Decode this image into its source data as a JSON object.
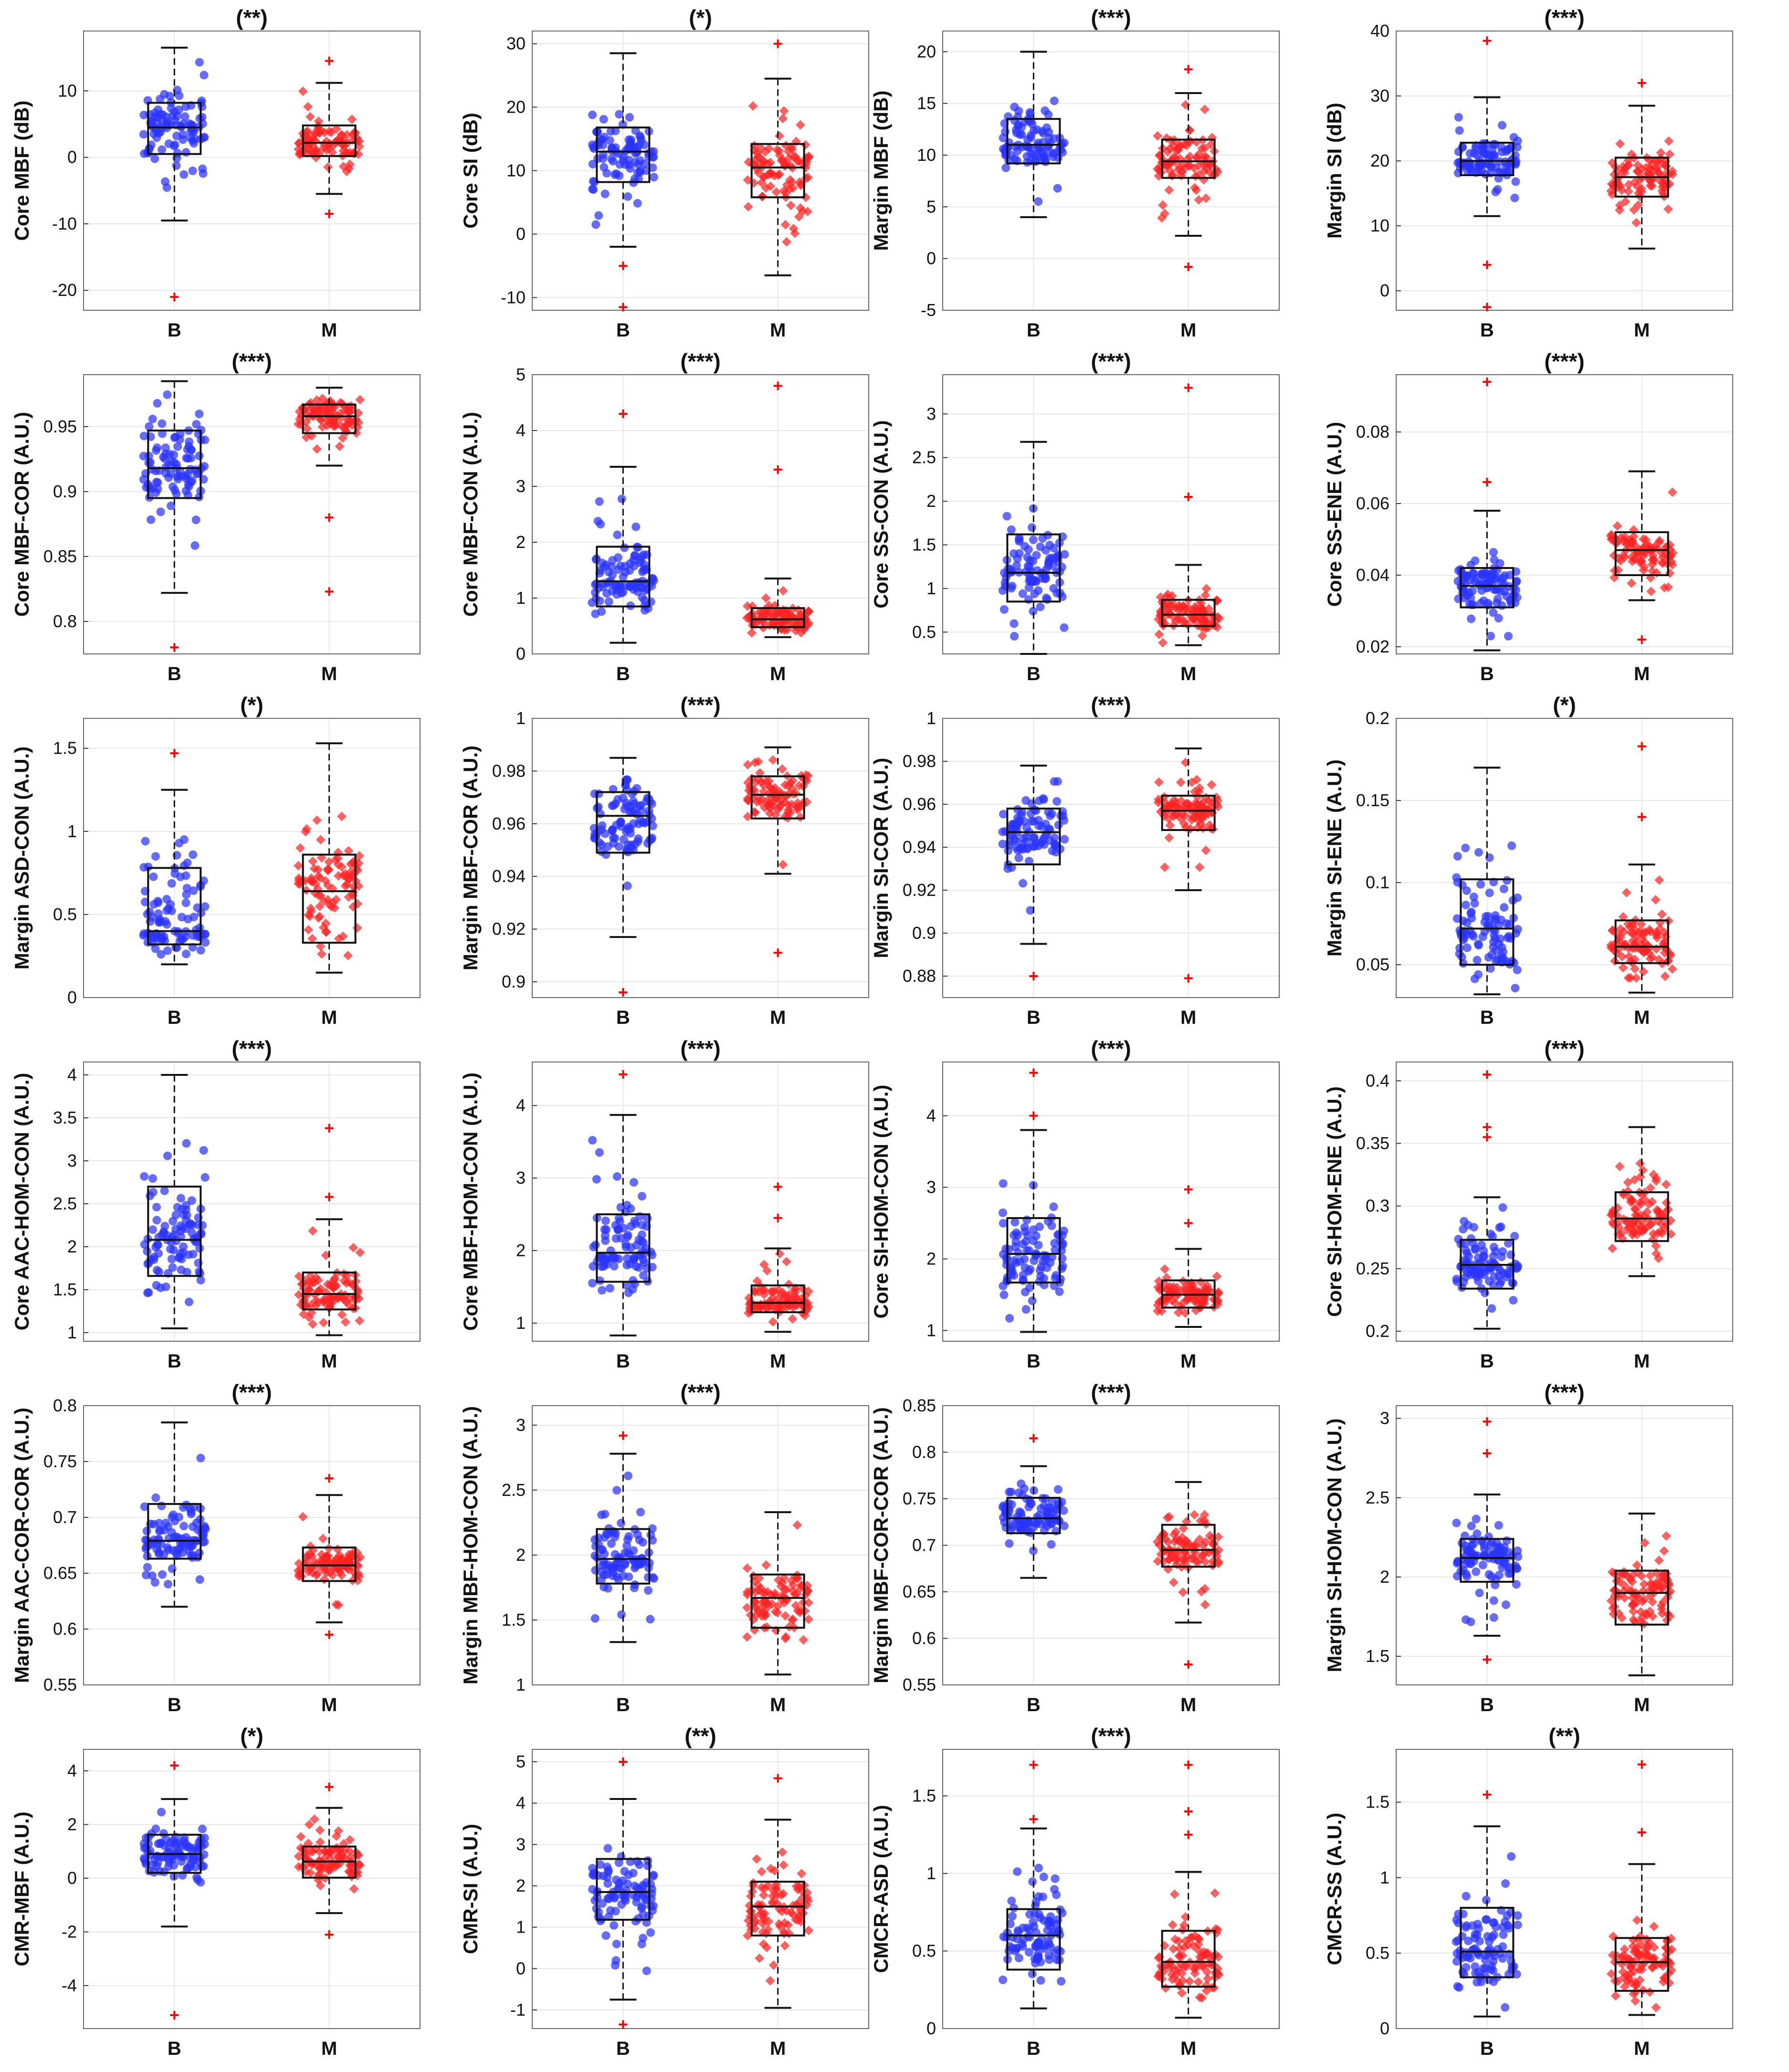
{
  "figure": {
    "rows": 6,
    "cols": 4,
    "group_colors": {
      "B": "#2a33ff",
      "M": "#ff2222"
    },
    "box_color": "#111111",
    "grid_color": "#e6e6e6"
  },
  "chart_data": [
    {
      "type": "box",
      "title": "(**)",
      "ylabel": "Core MBF (dB)",
      "categories": [
        "B",
        "M"
      ],
      "ylim": [
        -23,
        19
      ],
      "yticks": [
        -20,
        -10,
        0,
        10
      ],
      "series": [
        {
          "name": "B",
          "min": -9.5,
          "q1": 0.5,
          "median": 4.5,
          "q3": 8.2,
          "max": 16.5,
          "outliers": [
            -21
          ]
        },
        {
          "name": "M",
          "min": -5.5,
          "q1": 0.2,
          "median": 2.2,
          "q3": 4.8,
          "max": 11.2,
          "outliers": [
            14.5,
            -8.5
          ]
        }
      ]
    },
    {
      "type": "box",
      "title": "(*)",
      "ylabel": "Core SI (dB)",
      "categories": [
        "B",
        "M"
      ],
      "ylim": [
        -12,
        32
      ],
      "yticks": [
        -10,
        0,
        10,
        20,
        30
      ],
      "series": [
        {
          "name": "B",
          "min": -2,
          "q1": 8.2,
          "median": 13,
          "q3": 16.8,
          "max": 28.5,
          "outliers": [
            -11.5,
            -5
          ]
        },
        {
          "name": "M",
          "min": -6.5,
          "q1": 5.8,
          "median": 10.5,
          "q3": 14.2,
          "max": 24.5,
          "outliers": [
            30
          ]
        }
      ]
    },
    {
      "type": "box",
      "title": "(***)",
      "ylabel": "Margin MBF (dB)",
      "categories": [
        "B",
        "M"
      ],
      "ylim": [
        -5,
        22
      ],
      "yticks": [
        -5,
        0,
        5,
        10,
        15,
        20
      ],
      "series": [
        {
          "name": "B",
          "min": 4,
          "q1": 9.2,
          "median": 11,
          "q3": 13.5,
          "max": 20,
          "outliers": []
        },
        {
          "name": "M",
          "min": 2.2,
          "q1": 7.8,
          "median": 9.4,
          "q3": 11.5,
          "max": 16,
          "outliers": [
            18.3,
            -0.8
          ]
        }
      ]
    },
    {
      "type": "box",
      "title": "(***)",
      "ylabel": "Margin SI (dB)",
      "categories": [
        "B",
        "M"
      ],
      "ylim": [
        -3,
        40
      ],
      "yticks": [
        0,
        10,
        20,
        30,
        40
      ],
      "series": [
        {
          "name": "B",
          "min": 11.5,
          "q1": 17.8,
          "median": 20,
          "q3": 22.8,
          "max": 29.8,
          "outliers": [
            38.5,
            -2.5,
            4
          ]
        },
        {
          "name": "M",
          "min": 6.5,
          "q1": 14.5,
          "median": 17.5,
          "q3": 20.5,
          "max": 28.5,
          "outliers": [
            32
          ]
        }
      ]
    },
    {
      "type": "box",
      "title": "(***)",
      "ylabel": "Core MBF-COR (A.U.)",
      "categories": [
        "B",
        "M"
      ],
      "ylim": [
        0.775,
        0.99
      ],
      "yticks": [
        0.8,
        0.85,
        0.9,
        0.95
      ],
      "series": [
        {
          "name": "B",
          "min": 0.822,
          "q1": 0.895,
          "median": 0.918,
          "q3": 0.947,
          "max": 0.985,
          "outliers": [
            0.78
          ]
        },
        {
          "name": "M",
          "min": 0.92,
          "q1": 0.945,
          "median": 0.958,
          "q3": 0.967,
          "max": 0.98,
          "outliers": [
            0.88,
            0.823
          ]
        }
      ]
    },
    {
      "type": "box",
      "title": "(***)",
      "ylabel": "Core MBF-CON (A.U.)",
      "categories": [
        "B",
        "M"
      ],
      "ylim": [
        0,
        5
      ],
      "yticks": [
        0,
        1,
        2,
        3,
        4,
        5
      ],
      "series": [
        {
          "name": "B",
          "min": 0.2,
          "q1": 0.85,
          "median": 1.3,
          "q3": 1.92,
          "max": 3.35,
          "outliers": [
            4.3
          ]
        },
        {
          "name": "M",
          "min": 0.3,
          "q1": 0.48,
          "median": 0.62,
          "q3": 0.82,
          "max": 1.35,
          "outliers": [
            4.8,
            3.3
          ]
        }
      ]
    },
    {
      "type": "box",
      "title": "(***)",
      "ylabel": "Core SS-CON (A.U.)",
      "categories": [
        "B",
        "M"
      ],
      "ylim": [
        0.25,
        3.45
      ],
      "yticks": [
        0.5,
        1,
        1.5,
        2,
        2.5,
        3
      ],
      "series": [
        {
          "name": "B",
          "min": 0.25,
          "q1": 0.85,
          "median": 1.18,
          "q3": 1.62,
          "max": 2.68,
          "outliers": []
        },
        {
          "name": "M",
          "min": 0.35,
          "q1": 0.57,
          "median": 0.7,
          "q3": 0.87,
          "max": 1.27,
          "outliers": [
            3.3,
            2.05
          ]
        }
      ]
    },
    {
      "type": "box",
      "title": "(***)",
      "ylabel": "Core SS-ENE (A.U.)",
      "categories": [
        "B",
        "M"
      ],
      "ylim": [
        0.018,
        0.096
      ],
      "yticks": [
        0.02,
        0.04,
        0.06,
        0.08
      ],
      "series": [
        {
          "name": "B",
          "min": 0.019,
          "q1": 0.031,
          "median": 0.037,
          "q3": 0.042,
          "max": 0.058,
          "outliers": [
            0.094,
            0.066
          ]
        },
        {
          "name": "M",
          "min": 0.033,
          "q1": 0.04,
          "median": 0.047,
          "q3": 0.052,
          "max": 0.069,
          "outliers": [
            0.022
          ]
        }
      ]
    },
    {
      "type": "box",
      "title": "(*)",
      "ylabel": "Margin ASD-CON (A.U.)",
      "categories": [
        "B",
        "M"
      ],
      "ylim": [
        0,
        1.68
      ],
      "yticks": [
        0,
        0.5,
        1,
        1.5
      ],
      "series": [
        {
          "name": "B",
          "min": 0.2,
          "q1": 0.32,
          "median": 0.4,
          "q3": 0.78,
          "max": 1.25,
          "outliers": [
            1.47
          ]
        },
        {
          "name": "M",
          "min": 0.15,
          "q1": 0.33,
          "median": 0.64,
          "q3": 0.86,
          "max": 1.53,
          "outliers": []
        }
      ]
    },
    {
      "type": "box",
      "title": "(***)",
      "ylabel": "Margin MBF-COR (A.U.)",
      "categories": [
        "B",
        "M"
      ],
      "ylim": [
        0.894,
        1.0
      ],
      "yticks": [
        0.9,
        0.92,
        0.94,
        0.96,
        0.98,
        1
      ],
      "series": [
        {
          "name": "B",
          "min": 0.917,
          "q1": 0.949,
          "median": 0.963,
          "q3": 0.972,
          "max": 0.985,
          "outliers": [
            0.896
          ]
        },
        {
          "name": "M",
          "min": 0.941,
          "q1": 0.962,
          "median": 0.971,
          "q3": 0.978,
          "max": 0.989,
          "outliers": [
            0.911
          ]
        }
      ]
    },
    {
      "type": "box",
      "title": "(***)",
      "ylabel": "Margin SI-COR (A.U.)",
      "categories": [
        "B",
        "M"
      ],
      "ylim": [
        0.87,
        1.0
      ],
      "yticks": [
        0.88,
        0.9,
        0.92,
        0.94,
        0.96,
        0.98,
        1
      ],
      "series": [
        {
          "name": "B",
          "min": 0.895,
          "q1": 0.932,
          "median": 0.947,
          "q3": 0.958,
          "max": 0.978,
          "outliers": [
            0.88
          ]
        },
        {
          "name": "M",
          "min": 0.92,
          "q1": 0.948,
          "median": 0.957,
          "q3": 0.964,
          "max": 0.986,
          "outliers": [
            0.879
          ]
        }
      ]
    },
    {
      "type": "box",
      "title": "(*)",
      "ylabel": "Margin SI-ENE (A.U.)",
      "categories": [
        "B",
        "M"
      ],
      "ylim": [
        0.03,
        0.2
      ],
      "yticks": [
        0.05,
        0.1,
        0.15,
        0.2
      ],
      "series": [
        {
          "name": "B",
          "min": 0.032,
          "q1": 0.05,
          "median": 0.072,
          "q3": 0.102,
          "max": 0.17,
          "outliers": []
        },
        {
          "name": "M",
          "min": 0.033,
          "q1": 0.051,
          "median": 0.061,
          "q3": 0.077,
          "max": 0.111,
          "outliers": [
            0.183,
            0.14
          ]
        }
      ]
    },
    {
      "type": "box",
      "title": "(***)",
      "ylabel": "Core AAC-HOM-CON (A.U.)",
      "categories": [
        "B",
        "M"
      ],
      "ylim": [
        0.9,
        4.15
      ],
      "yticks": [
        1,
        1.5,
        2,
        2.5,
        3,
        3.5,
        4
      ],
      "series": [
        {
          "name": "B",
          "min": 1.05,
          "q1": 1.66,
          "median": 2.08,
          "q3": 2.7,
          "max": 4.0,
          "outliers": []
        },
        {
          "name": "M",
          "min": 0.97,
          "q1": 1.27,
          "median": 1.45,
          "q3": 1.7,
          "max": 2.32,
          "outliers": [
            3.38,
            2.58
          ]
        }
      ]
    },
    {
      "type": "box",
      "title": "(***)",
      "ylabel": "Core MBF-HOM-CON (A.U.)",
      "categories": [
        "B",
        "M"
      ],
      "ylim": [
        0.75,
        4.6
      ],
      "yticks": [
        1,
        2,
        3,
        4
      ],
      "series": [
        {
          "name": "B",
          "min": 0.83,
          "q1": 1.57,
          "median": 1.97,
          "q3": 2.5,
          "max": 3.87,
          "outliers": [
            4.43
          ]
        },
        {
          "name": "M",
          "min": 0.88,
          "q1": 1.15,
          "median": 1.28,
          "q3": 1.52,
          "max": 2.03,
          "outliers": [
            2.88,
            2.45
          ]
        }
      ]
    },
    {
      "type": "box",
      "title": "(***)",
      "ylabel": "Core SI-HOM-CON (A.U.)",
      "categories": [
        "B",
        "M"
      ],
      "ylim": [
        0.85,
        4.75
      ],
      "yticks": [
        1,
        2,
        3,
        4
      ],
      "series": [
        {
          "name": "B",
          "min": 0.98,
          "q1": 1.67,
          "median": 2.07,
          "q3": 2.57,
          "max": 3.8,
          "outliers": [
            4.6,
            4.0
          ]
        },
        {
          "name": "M",
          "min": 1.05,
          "q1": 1.32,
          "median": 1.5,
          "q3": 1.7,
          "max": 2.14,
          "outliers": [
            2.97,
            2.5
          ]
        }
      ]
    },
    {
      "type": "box",
      "title": "(***)",
      "ylabel": "Core SI-HOM-ENE (A.U.)",
      "categories": [
        "B",
        "M"
      ],
      "ylim": [
        0.192,
        0.415
      ],
      "yticks": [
        0.2,
        0.25,
        0.3,
        0.35,
        0.4
      ],
      "series": [
        {
          "name": "B",
          "min": 0.202,
          "q1": 0.234,
          "median": 0.253,
          "q3": 0.273,
          "max": 0.307,
          "outliers": [
            0.405,
            0.363,
            0.355
          ]
        },
        {
          "name": "M",
          "min": 0.244,
          "q1": 0.272,
          "median": 0.29,
          "q3": 0.311,
          "max": 0.363,
          "outliers": []
        }
      ]
    },
    {
      "type": "box",
      "title": "(***)",
      "ylabel": "Margin AAC-COR-COR (A.U.)",
      "categories": [
        "B",
        "M"
      ],
      "ylim": [
        0.55,
        0.8
      ],
      "yticks": [
        0.55,
        0.6,
        0.65,
        0.7,
        0.75,
        0.8
      ],
      "series": [
        {
          "name": "B",
          "min": 0.62,
          "q1": 0.663,
          "median": 0.679,
          "q3": 0.712,
          "max": 0.785,
          "outliers": []
        },
        {
          "name": "M",
          "min": 0.606,
          "q1": 0.643,
          "median": 0.657,
          "q3": 0.673,
          "max": 0.72,
          "outliers": [
            0.735,
            0.595
          ]
        }
      ]
    },
    {
      "type": "box",
      "title": "(***)",
      "ylabel": "Margin MBF-HOM-CON (A.U.)",
      "categories": [
        "B",
        "M"
      ],
      "ylim": [
        1.0,
        3.15
      ],
      "yticks": [
        1,
        1.5,
        2,
        2.5,
        3
      ],
      "series": [
        {
          "name": "B",
          "min": 1.33,
          "q1": 1.78,
          "median": 1.97,
          "q3": 2.2,
          "max": 2.78,
          "outliers": [
            2.92
          ]
        },
        {
          "name": "M",
          "min": 1.08,
          "q1": 1.44,
          "median": 1.67,
          "q3": 1.85,
          "max": 2.33,
          "outliers": []
        }
      ]
    },
    {
      "type": "box",
      "title": "(***)",
      "ylabel": "Margin MBF-COR-COR (A.U.)",
      "categories": [
        "B",
        "M"
      ],
      "ylim": [
        0.55,
        0.85
      ],
      "yticks": [
        0.55,
        0.6,
        0.65,
        0.7,
        0.75,
        0.8,
        0.85
      ],
      "series": [
        {
          "name": "B",
          "min": 0.665,
          "q1": 0.713,
          "median": 0.729,
          "q3": 0.751,
          "max": 0.785,
          "outliers": [
            0.815
          ]
        },
        {
          "name": "M",
          "min": 0.617,
          "q1": 0.677,
          "median": 0.695,
          "q3": 0.722,
          "max": 0.768,
          "outliers": [
            0.572
          ]
        }
      ]
    },
    {
      "type": "box",
      "title": "(***)",
      "ylabel": "Margin SI-HOM-CON (A.U.)",
      "categories": [
        "B",
        "M"
      ],
      "ylim": [
        1.32,
        3.08
      ],
      "yticks": [
        1.5,
        2,
        2.5,
        3
      ],
      "series": [
        {
          "name": "B",
          "min": 1.63,
          "q1": 1.97,
          "median": 2.12,
          "q3": 2.24,
          "max": 2.52,
          "outliers": [
            2.98,
            2.78,
            1.48
          ]
        },
        {
          "name": "M",
          "min": 1.38,
          "q1": 1.7,
          "median": 1.9,
          "q3": 2.04,
          "max": 2.4,
          "outliers": []
        }
      ]
    },
    {
      "type": "box",
      "title": "(*)",
      "ylabel": "CMR-MBF (A.U.)",
      "categories": [
        "B",
        "M"
      ],
      "ylim": [
        -5.6,
        4.8
      ],
      "yticks": [
        -4,
        -2,
        0,
        2,
        4
      ],
      "series": [
        {
          "name": "B",
          "min": -1.8,
          "q1": 0.2,
          "median": 0.9,
          "q3": 1.62,
          "max": 2.95,
          "outliers": [
            4.2,
            -5.1
          ]
        },
        {
          "name": "M",
          "min": -1.3,
          "q1": 0.02,
          "median": 0.62,
          "q3": 1.18,
          "max": 2.62,
          "outliers": [
            3.4,
            -2.1
          ]
        }
      ]
    },
    {
      "type": "box",
      "title": "(**)",
      "ylabel": "CMR-SI (A.U.)",
      "categories": [
        "B",
        "M"
      ],
      "ylim": [
        -1.45,
        5.3
      ],
      "yticks": [
        -1,
        0,
        1,
        2,
        3,
        4,
        5
      ],
      "series": [
        {
          "name": "B",
          "min": -0.75,
          "q1": 1.18,
          "median": 1.85,
          "q3": 2.65,
          "max": 4.1,
          "outliers": [
            5.0,
            -1.35
          ]
        },
        {
          "name": "M",
          "min": -0.95,
          "q1": 0.8,
          "median": 1.5,
          "q3": 2.1,
          "max": 3.6,
          "outliers": [
            4.6
          ]
        }
      ]
    },
    {
      "type": "box",
      "title": "(***)",
      "ylabel": "CMCR-ASD (A.U.)",
      "categories": [
        "B",
        "M"
      ],
      "ylim": [
        0,
        1.8
      ],
      "yticks": [
        0,
        0.5,
        1,
        1.5
      ],
      "series": [
        {
          "name": "B",
          "min": 0.13,
          "q1": 0.38,
          "median": 0.6,
          "q3": 0.77,
          "max": 1.29,
          "outliers": [
            1.7,
            1.35
          ]
        },
        {
          "name": "M",
          "min": 0.07,
          "q1": 0.27,
          "median": 0.43,
          "q3": 0.63,
          "max": 1.01,
          "outliers": [
            1.7,
            1.4,
            1.25
          ]
        }
      ]
    },
    {
      "type": "box",
      "title": "(**)",
      "ylabel": "CMCR-SS (A.U.)",
      "categories": [
        "B",
        "M"
      ],
      "ylim": [
        0,
        1.85
      ],
      "yticks": [
        0,
        0.5,
        1,
        1.5
      ],
      "series": [
        {
          "name": "B",
          "min": 0.08,
          "q1": 0.34,
          "median": 0.51,
          "q3": 0.8,
          "max": 1.34,
          "outliers": [
            1.55
          ]
        },
        {
          "name": "M",
          "min": 0.09,
          "q1": 0.25,
          "median": 0.44,
          "q3": 0.6,
          "max": 1.09,
          "outliers": [
            1.75,
            1.3
          ]
        }
      ]
    }
  ]
}
